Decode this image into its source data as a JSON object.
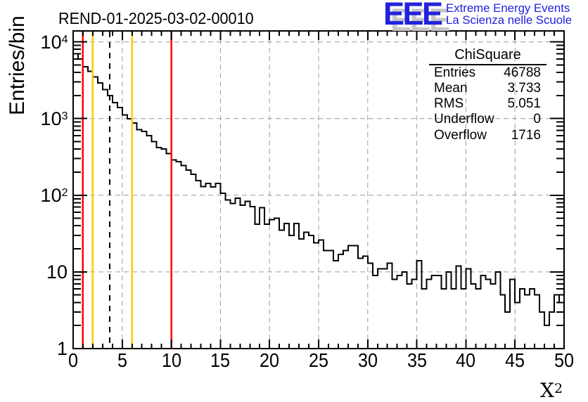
{
  "title": "REND-01-2025-03-02-00010",
  "logo": {
    "letters": "EEE",
    "tagline1": "Extreme Energy Events",
    "tagline2": "La Scienza nelle Scuole",
    "blue": "#2222dd",
    "shadow_gray": "#c6c6c6"
  },
  "stats_box": {
    "title": "ChiSquare",
    "rows": [
      {
        "label": "Entries",
        "value": "46788"
      },
      {
        "label": "Mean",
        "value": "3.733"
      },
      {
        "label": "RMS",
        "value": "5.051"
      },
      {
        "label": "Underflow",
        "value": "0"
      },
      {
        "label": "Overflow",
        "value": "1716"
      }
    ]
  },
  "chart_data": {
    "type": "bar",
    "subtype": "step-histogram",
    "title": "REND-01-2025-03-02-00010",
    "xlabel_base": "X",
    "xlabel_exp": "2",
    "ylabel": "Entries/bin",
    "xlim": [
      0,
      50
    ],
    "ylim": [
      1,
      13900
    ],
    "yscale": "log",
    "bin_width": 0.5,
    "bin_start": 0,
    "grid": true,
    "legend_position": "none",
    "x_major_ticks": [
      0,
      5,
      10,
      15,
      20,
      25,
      30,
      35,
      40,
      45,
      50
    ],
    "y_ticks": [
      {
        "value": 1,
        "base": "1",
        "exp": ""
      },
      {
        "value": 10,
        "base": "10",
        "exp": ""
      },
      {
        "value": 100,
        "base": "10",
        "exp": "2"
      },
      {
        "value": 1000,
        "base": "10",
        "exp": "3"
      },
      {
        "value": 10000,
        "base": "10",
        "exp": "4"
      }
    ],
    "values": [
      7000,
      5950,
      4750,
      4150,
      3500,
      2930,
      2380,
      2000,
      1610,
      1400,
      1117,
      990,
      875,
      715,
      678,
      600,
      500,
      420,
      400,
      350,
      290,
      273,
      245,
      214,
      188,
      155,
      129,
      143,
      128,
      142,
      106,
      87,
      78,
      92,
      74,
      83,
      71,
      42,
      69,
      42,
      48,
      50,
      35,
      43,
      30,
      43,
      27,
      33,
      30,
      24,
      26,
      19,
      19,
      14,
      17,
      19,
      22,
      22,
      15,
      16,
      13,
      9,
      11,
      11,
      13,
      8,
      9,
      10,
      7,
      8,
      14,
      6,
      8,
      9,
      9,
      6,
      10,
      6,
      12,
      6,
      11,
      7,
      6,
      9,
      8,
      7,
      10,
      5,
      3,
      8,
      4,
      6,
      5,
      6,
      5,
      3,
      2,
      3,
      5,
      4
    ],
    "vlines": [
      {
        "x": 1,
        "color": "#ff0000",
        "style": "solid"
      },
      {
        "x": 2,
        "color": "#ffcc00",
        "style": "solid"
      },
      {
        "x": 3.733,
        "color": "#000000",
        "style": "dashed"
      },
      {
        "x": 6,
        "color": "#ffcc00",
        "style": "solid"
      },
      {
        "x": 10,
        "color": "#ff0000",
        "style": "solid"
      }
    ],
    "hist_color": "#000000",
    "grid_color": "#9c9c9c"
  }
}
